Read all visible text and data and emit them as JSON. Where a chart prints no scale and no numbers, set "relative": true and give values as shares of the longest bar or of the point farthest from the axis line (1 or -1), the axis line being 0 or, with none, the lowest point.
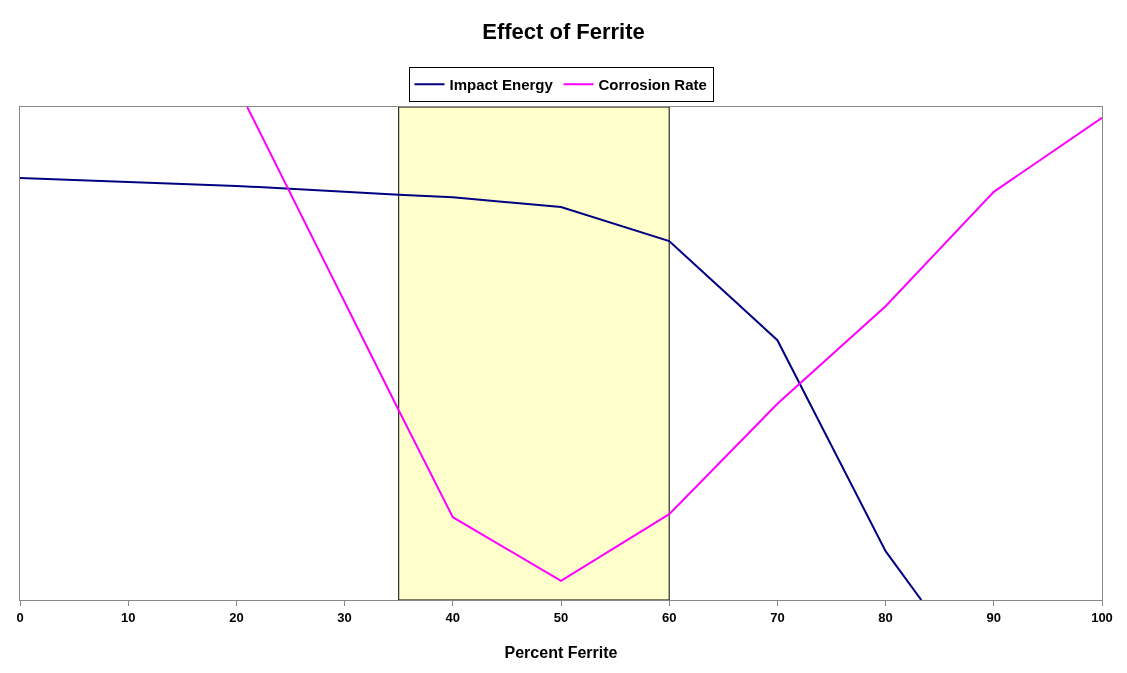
{
  "chart_data": {
    "type": "line",
    "title": "Effect of Ferrite",
    "xlabel": "Percent Ferrite",
    "relative": true,
    "series": [
      {
        "name": "Impact Energy",
        "color": "#000080",
        "x": [
          0,
          20,
          35,
          40,
          50,
          60,
          70,
          80,
          83.3
        ],
        "values": [
          0.856,
          0.84,
          0.822,
          0.817,
          0.797,
          0.728,
          0.527,
          0.099,
          0
        ]
      },
      {
        "name": "Corrosion Rate",
        "color": "#ff00ff",
        "x": [
          21,
          35,
          40,
          50,
          60,
          70,
          80,
          90,
          100
        ],
        "values": [
          1,
          0.385,
          0.168,
          0.039,
          0.174,
          0.398,
          0.596,
          0.828,
          0.978
        ]
      }
    ],
    "xlim": [
      0,
      100
    ],
    "xticks": [
      0,
      10,
      20,
      30,
      40,
      50,
      60,
      70,
      80,
      90,
      100
    ],
    "bands": [
      {
        "axis": "x",
        "from": 35,
        "to": 60,
        "color": "#ffffcc"
      }
    ],
    "grid": false,
    "legend": "top",
    "tick_labels": "x",
    "marker": "none",
    "line_style": "solid"
  }
}
